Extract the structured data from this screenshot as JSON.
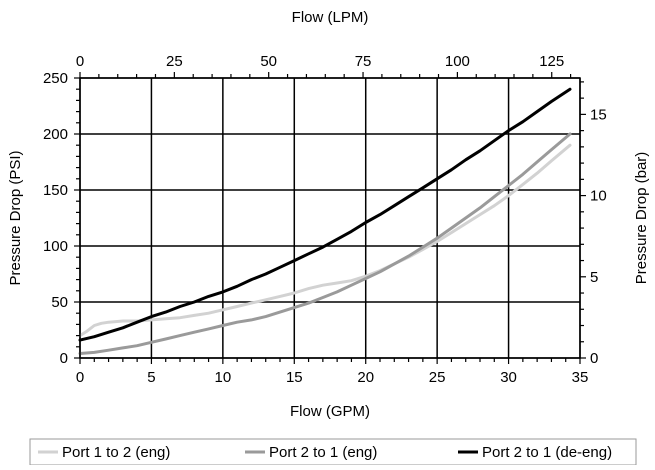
{
  "chart_data": {
    "type": "line",
    "title": "",
    "x_bottom": {
      "label": "Flow (GPM)",
      "range": [
        0,
        35
      ],
      "ticks": [
        0,
        5,
        10,
        15,
        20,
        25,
        30,
        35
      ],
      "tick_labels": [
        "0",
        "5",
        "10",
        "15",
        "20",
        "25",
        "30",
        "35"
      ]
    },
    "x_top": {
      "label": "Flow (LPM)",
      "range": [
        0,
        132.49
      ],
      "ticks": [
        0,
        25,
        50,
        75,
        100,
        125
      ],
      "tick_labels": [
        "0",
        "25",
        "50",
        "75",
        "100",
        "125"
      ]
    },
    "y_left": {
      "label": "Pressure Drop (PSI)",
      "range": [
        0,
        250
      ],
      "ticks": [
        0,
        50,
        100,
        150,
        200,
        250
      ],
      "tick_labels": [
        "0",
        "50",
        "100",
        "150",
        "200",
        "250"
      ]
    },
    "y_right": {
      "label": "Pressure Drop (bar)",
      "range": [
        0,
        17.24
      ],
      "ticks": [
        0,
        5,
        10,
        15
      ],
      "tick_labels": [
        "0",
        "5",
        "10",
        "15"
      ]
    },
    "grid": true,
    "legend_position": "bottom",
    "series": [
      {
        "name": "Port 1 to 2 (eng)",
        "color": "#d2d2d2",
        "x": [
          0,
          0.5,
          1,
          1.5,
          2,
          3,
          4,
          5,
          6,
          7,
          8,
          9,
          10,
          11,
          12,
          13,
          14,
          15,
          16,
          17,
          18,
          19,
          20,
          21,
          22,
          23,
          24,
          25,
          26,
          27,
          28,
          29,
          30,
          31,
          32,
          33,
          34.3
        ],
        "y": [
          20,
          24,
          29,
          31,
          32,
          33,
          33,
          34,
          35,
          36,
          38,
          40,
          43,
          46,
          49,
          52,
          55,
          58,
          62,
          65,
          67,
          69,
          73,
          78,
          84,
          90,
          97,
          104,
          112,
          120,
          128,
          136,
          145,
          155,
          165,
          176,
          190
        ]
      },
      {
        "name": "Port 2 to 1 (eng)",
        "color": "#9a9a9a",
        "x": [
          0,
          1,
          2,
          3,
          4,
          5,
          6,
          7,
          8,
          9,
          10,
          11,
          12,
          13,
          14,
          15,
          16,
          17,
          18,
          19,
          20,
          21,
          22,
          23,
          24,
          25,
          26,
          27,
          28,
          29,
          30,
          31,
          32,
          33,
          34.3
        ],
        "y": [
          4,
          5,
          7,
          9,
          11,
          14,
          17,
          20,
          23,
          26,
          29,
          32,
          34,
          37,
          41,
          45,
          49,
          54,
          59,
          65,
          71,
          77,
          84,
          91,
          99,
          107,
          116,
          125,
          134,
          144,
          154,
          164,
          175,
          186,
          200
        ]
      },
      {
        "name": "Port 2 to 1 (de-eng)",
        "color": "#000000",
        "x": [
          0,
          1,
          2,
          3,
          4,
          5,
          6,
          7,
          8,
          9,
          10,
          11,
          12,
          13,
          14,
          15,
          16,
          17,
          18,
          19,
          20,
          21,
          22,
          23,
          24,
          25,
          26,
          27,
          28,
          29,
          30,
          31,
          32,
          33,
          34.3
        ],
        "y": [
          16,
          19,
          23,
          27,
          32,
          37,
          41,
          46,
          50,
          55,
          59,
          64,
          70,
          75,
          81,
          87,
          93,
          99,
          106,
          113,
          121,
          128,
          136,
          144,
          152,
          160,
          168,
          177,
          185,
          194,
          203,
          211,
          220,
          229,
          240
        ]
      }
    ]
  }
}
